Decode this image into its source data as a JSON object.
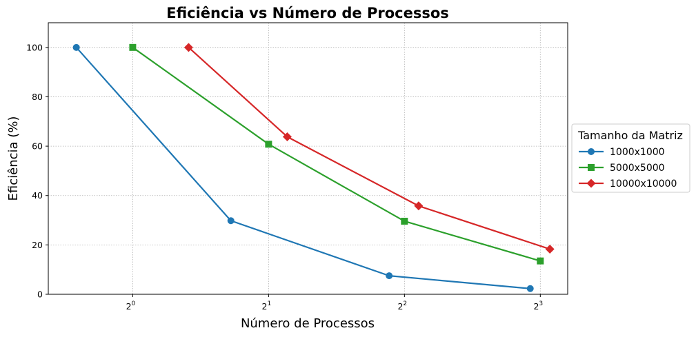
{
  "chart_data": {
    "type": "line",
    "title": "Eficiência vs Número de Processos",
    "xlabel": "Número de Processos",
    "ylabel": "Eficiência (%)",
    "x_scale": "log2",
    "xlim": [
      0.65,
      9.2
    ],
    "ylim": [
      0,
      110
    ],
    "x_ticks": [
      1,
      2,
      4,
      8
    ],
    "x_tick_base": "2",
    "x_tick_exponents": [
      "0",
      "1",
      "2",
      "3"
    ],
    "y_ticks": [
      0,
      20,
      40,
      60,
      80,
      100
    ],
    "grid": true,
    "legend": {
      "title": "Tamanho da Matriz",
      "placement": "right-outside"
    },
    "series": [
      {
        "name": "1000x1000",
        "color": "#1f77b4",
        "marker": "circle",
        "x": [
          0.75,
          1.65,
          3.7,
          7.6
        ],
        "y": [
          100,
          29.8,
          7.5,
          2.3
        ]
      },
      {
        "name": "5000x5000",
        "color": "#2ca02c",
        "marker": "square",
        "x": [
          1.0,
          2.0,
          4.0,
          8.0
        ],
        "y": [
          100,
          60.8,
          29.6,
          13.5
        ]
      },
      {
        "name": "10000x10000",
        "color": "#d62728",
        "marker": "diamond",
        "x": [
          1.33,
          2.2,
          4.3,
          8.4
        ],
        "y": [
          100,
          63.8,
          35.8,
          18.3
        ]
      }
    ]
  }
}
